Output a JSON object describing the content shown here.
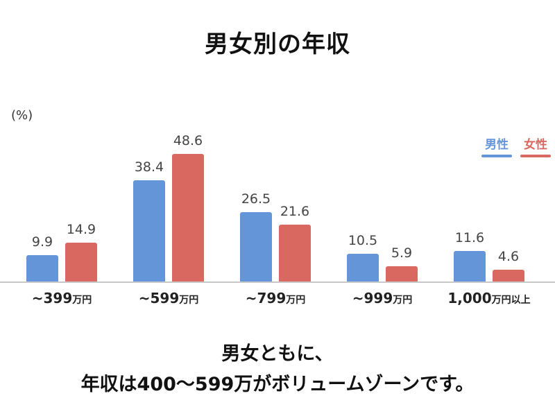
{
  "title": "男女別の年収",
  "unit_label": "(%)",
  "legend": [
    {
      "label": "男性",
      "color": "#6495d9"
    },
    {
      "label": "女性",
      "color": "#d96860"
    }
  ],
  "categories": [
    {
      "num": "~399",
      "suffix": "万円"
    },
    {
      "num": "~599",
      "suffix": "万円"
    },
    {
      "num": "~799",
      "suffix": "万円"
    },
    {
      "num": "~999",
      "suffix": "万円"
    },
    {
      "num": "1,000",
      "suffix": "万円以上"
    }
  ],
  "male_labels": [
    "9.9",
    "38.4",
    "26.5",
    "10.5",
    "11.6"
  ],
  "female_labels": [
    "14.9",
    "48.6",
    "21.6",
    "5.9",
    "4.6"
  ],
  "caption": {
    "line1": "男女ともに、",
    "line2": "年収は400〜599万がボリュームゾーンです。"
  },
  "chart_data": {
    "type": "bar",
    "title": "男女別の年収",
    "xlabel": "",
    "ylabel": "(%)",
    "categories": [
      "~399万円",
      "~599万円",
      "~799万円",
      "~999万円",
      "1,000万円以上"
    ],
    "series": [
      {
        "name": "男性",
        "color": "#6495d9",
        "values": [
          9.9,
          38.4,
          26.5,
          10.5,
          11.6
        ]
      },
      {
        "name": "女性",
        "color": "#d96860",
        "values": [
          14.9,
          48.6,
          21.6,
          5.9,
          4.6
        ]
      }
    ],
    "ylim": [
      0,
      50
    ],
    "grid": false,
    "legend_position": "top-right",
    "data_labels": true
  }
}
